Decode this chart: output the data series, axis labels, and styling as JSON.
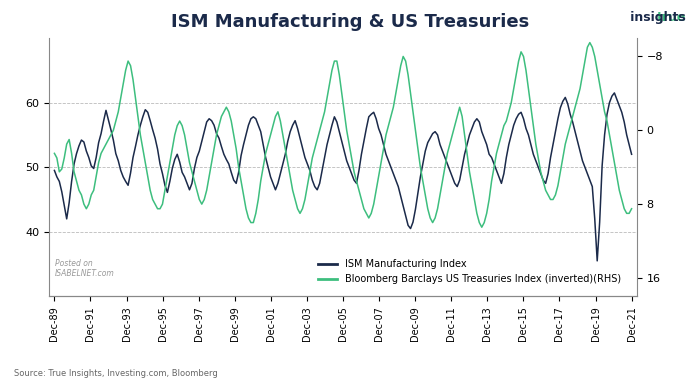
{
  "title": "ISM Manufacturing & US Treasuries",
  "source_text": "Source: True Insights, Investing.com, Bloomberg",
  "legend_ism": "ISM Manufacturing Index",
  "legend_bb": "Bloomberg Barclays US Treasuries Index (inverted)(RHS)",
  "ism_color": "#1b2a4a",
  "bb_color": "#3dbe7e",
  "left_ylim": [
    30,
    70
  ],
  "left_yticks": [
    40,
    50,
    60
  ],
  "right_ylim": [
    18,
    -10
  ],
  "right_yticks": [
    -8.0,
    0.0,
    8.0,
    16.0
  ],
  "x_tick_labels": [
    "Dec-89",
    "Dec-91",
    "Dec-93",
    "Dec-95",
    "Dec-97",
    "Dec-99",
    "Dec-01",
    "Dec-03",
    "Dec-05",
    "Dec-07",
    "Dec-09",
    "Dec-11",
    "Dec-13",
    "Dec-15",
    "Dec-17",
    "Dec-19",
    "Dec-21"
  ],
  "background_color": "#ffffff",
  "grid_color": "#bbbbbb",
  "ism_data": [
    49.5,
    48.5,
    47.8,
    46.2,
    44.1,
    42.0,
    44.5,
    47.8,
    50.5,
    52.1,
    53.3,
    54.2,
    53.9,
    52.5,
    51.5,
    50.2,
    49.8,
    51.5,
    53.8,
    55.2,
    57.1,
    58.8,
    57.3,
    55.8,
    54.2,
    52.1,
    51.0,
    49.5,
    48.5,
    47.8,
    47.2,
    49.1,
    51.5,
    53.2,
    55.0,
    56.5,
    57.8,
    58.9,
    58.5,
    57.2,
    55.8,
    54.5,
    52.8,
    50.5,
    49.0,
    47.2,
    46.1,
    47.8,
    49.8,
    51.2,
    52.0,
    50.8,
    49.2,
    48.5,
    47.5,
    46.5,
    47.5,
    49.8,
    51.5,
    52.5,
    54.0,
    55.5,
    57.0,
    57.5,
    57.2,
    56.5,
    55.2,
    54.5,
    53.2,
    52.0,
    51.2,
    50.5,
    49.2,
    48.0,
    47.5,
    49.2,
    51.8,
    53.5,
    55.0,
    56.5,
    57.5,
    57.8,
    57.5,
    56.5,
    55.5,
    53.5,
    51.5,
    50.0,
    48.5,
    47.5,
    46.5,
    47.5,
    49.0,
    50.5,
    52.0,
    54.0,
    55.5,
    56.5,
    57.2,
    56.0,
    54.5,
    53.0,
    51.5,
    50.5,
    49.5,
    48.0,
    47.0,
    46.5,
    47.5,
    49.5,
    51.5,
    53.5,
    55.0,
    56.5,
    57.8,
    57.0,
    55.5,
    54.0,
    52.5,
    51.0,
    50.0,
    49.0,
    48.0,
    47.5,
    49.5,
    52.0,
    54.0,
    56.0,
    57.8,
    58.2,
    58.5,
    57.5,
    56.0,
    55.0,
    53.5,
    52.0,
    51.0,
    50.0,
    49.0,
    48.0,
    47.0,
    45.5,
    44.0,
    42.5,
    41.0,
    40.5,
    41.5,
    43.5,
    46.0,
    48.5,
    50.5,
    52.5,
    53.8,
    54.5,
    55.2,
    55.5,
    55.0,
    53.5,
    52.5,
    51.5,
    50.5,
    49.5,
    48.5,
    47.5,
    47.0,
    48.0,
    50.0,
    52.0,
    53.5,
    55.0,
    56.0,
    57.0,
    57.5,
    57.0,
    55.5,
    54.5,
    53.5,
    52.0,
    51.5,
    50.5,
    49.5,
    48.5,
    47.5,
    49.0,
    51.5,
    53.5,
    55.0,
    56.5,
    57.5,
    58.2,
    58.5,
    57.5,
    56.0,
    55.0,
    53.5,
    52.0,
    51.0,
    50.0,
    49.0,
    48.0,
    47.5,
    49.0,
    51.5,
    53.5,
    55.5,
    57.5,
    59.2,
    60.2,
    60.8,
    59.8,
    58.2,
    57.0,
    55.5,
    54.0,
    52.5,
    51.0,
    50.0,
    49.0,
    48.0,
    47.0,
    42.0,
    35.5,
    41.5,
    50.2,
    55.0,
    58.2,
    60.0,
    61.0,
    61.5,
    60.5,
    59.5,
    58.5,
    57.0,
    55.0,
    53.5,
    52.0,
    50.5,
    49.0,
    47.0,
    46.0,
    48.0,
    52.5,
    55.5,
    57.2,
    57.8,
    56.2,
    54.0,
    52.0
  ],
  "bb_data": [
    2.5,
    3.0,
    4.5,
    4.2,
    3.0,
    1.5,
    1.0,
    2.5,
    4.5,
    5.5,
    6.5,
    7.0,
    8.0,
    8.5,
    8.0,
    7.0,
    6.5,
    5.0,
    3.5,
    2.5,
    2.0,
    1.5,
    1.0,
    0.5,
    0.0,
    -1.0,
    -2.0,
    -3.5,
    -5.0,
    -6.5,
    -7.5,
    -7.0,
    -5.5,
    -3.5,
    -1.5,
    0.5,
    2.0,
    3.5,
    5.0,
    6.5,
    7.5,
    8.0,
    8.5,
    8.5,
    8.0,
    6.5,
    5.0,
    3.5,
    2.0,
    0.5,
    -0.5,
    -1.0,
    -0.5,
    0.5,
    2.0,
    3.5,
    4.5,
    5.5,
    6.5,
    7.5,
    8.0,
    7.5,
    6.5,
    5.0,
    3.5,
    2.0,
    0.5,
    -0.5,
    -1.5,
    -2.0,
    -2.5,
    -2.0,
    -1.0,
    0.5,
    2.0,
    4.0,
    5.5,
    7.0,
    8.5,
    9.5,
    10.0,
    10.0,
    9.0,
    7.5,
    5.5,
    4.0,
    2.5,
    1.5,
    0.5,
    -0.5,
    -1.5,
    -2.0,
    -1.0,
    0.5,
    2.0,
    3.5,
    5.0,
    6.5,
    7.5,
    8.5,
    9.0,
    8.5,
    7.5,
    6.0,
    4.5,
    3.0,
    2.0,
    1.0,
    0.0,
    -1.0,
    -2.0,
    -3.5,
    -5.0,
    -6.5,
    -7.5,
    -7.5,
    -6.0,
    -4.0,
    -2.0,
    0.0,
    1.5,
    3.0,
    4.5,
    5.5,
    6.5,
    7.5,
    8.5,
    9.0,
    9.5,
    9.0,
    8.0,
    6.5,
    5.0,
    3.5,
    2.0,
    0.5,
    -0.5,
    -1.5,
    -2.5,
    -4.0,
    -5.5,
    -7.0,
    -8.0,
    -7.5,
    -6.0,
    -4.0,
    -2.0,
    0.0,
    2.0,
    4.0,
    5.5,
    7.0,
    8.5,
    9.5,
    10.0,
    9.5,
    8.5,
    7.0,
    5.5,
    4.0,
    2.5,
    1.5,
    0.5,
    -0.5,
    -1.5,
    -2.5,
    -1.5,
    0.5,
    2.5,
    4.5,
    6.0,
    7.5,
    9.0,
    10.0,
    10.5,
    10.0,
    9.0,
    7.5,
    5.5,
    4.0,
    2.5,
    1.5,
    0.5,
    -0.5,
    -1.0,
    -2.0,
    -3.0,
    -4.5,
    -6.0,
    -7.5,
    -8.5,
    -8.0,
    -6.5,
    -4.5,
    -2.5,
    -0.5,
    1.5,
    3.0,
    4.5,
    5.5,
    6.5,
    7.0,
    7.5,
    7.5,
    7.0,
    6.0,
    4.5,
    3.0,
    1.5,
    0.5,
    -0.5,
    -1.5,
    -2.5,
    -3.5,
    -4.5,
    -6.0,
    -7.5,
    -9.0,
    -9.5,
    -9.0,
    -8.0,
    -6.5,
    -5.0,
    -3.5,
    -2.0,
    -1.0,
    0.5,
    2.0,
    3.5,
    5.0,
    6.5,
    7.5,
    8.5,
    9.0,
    9.0,
    8.5
  ]
}
